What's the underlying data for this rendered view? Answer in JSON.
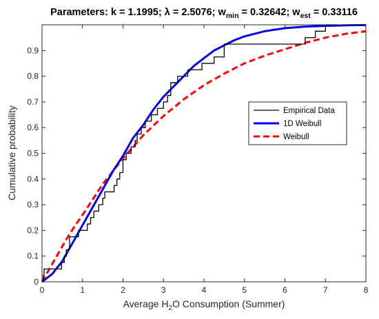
{
  "chart_data": {
    "type": "line",
    "title": {
      "prefix": "Parameters: k = 1.1995; ",
      "lambda_symbol": "λ",
      "lambda_value": " = 2.5076; w",
      "wmin_sub": "min",
      "wmin_value": " = 0.32642; w",
      "west_sub": "est",
      "west_value": " = 0.33116"
    },
    "xlabel": {
      "pre": "Average H",
      "sub": "2",
      "post": "O Consumption (Summer)"
    },
    "ylabel": "Cumulative probability",
    "xlim": [
      0,
      8
    ],
    "ylim": [
      0,
      1
    ],
    "x_ticks": [
      0,
      1,
      2,
      3,
      4,
      5,
      6,
      7,
      8
    ],
    "x_tick_labels": [
      "0",
      "1",
      "2",
      "3",
      "4",
      "5",
      "6",
      "7",
      "8"
    ],
    "y_ticks": [
      0,
      0.1,
      0.2,
      0.3,
      0.4,
      0.5,
      0.6,
      0.7,
      0.8,
      0.9
    ],
    "y_tick_labels": [
      "0",
      "0.1",
      "0.2",
      "0.3",
      "0.4",
      "0.5",
      "0.6",
      "0.7",
      "0.8",
      "0.9"
    ],
    "grid": false,
    "legend_position": "right",
    "series": [
      {
        "name": "Empirical Data",
        "kind": "step",
        "color": "#000000",
        "x": [
          0,
          0.03,
          0.05,
          0.1,
          0.48,
          0.55,
          0.6,
          0.68,
          0.9,
          1.12,
          1.2,
          1.28,
          1.4,
          1.5,
          1.55,
          1.78,
          1.85,
          1.92,
          2.0,
          2.08,
          2.2,
          2.3,
          2.35,
          2.45,
          2.55,
          2.7,
          2.85,
          3.0,
          3.1,
          3.18,
          3.35,
          3.6,
          3.8,
          3.95,
          4.1,
          4.25,
          4.5,
          6.5,
          6.65,
          6.75,
          6.85,
          7.0,
          7.3
        ],
        "y": [
          0.0,
          0.025,
          0.05,
          0.05,
          0.075,
          0.1,
          0.125,
          0.175,
          0.2,
          0.225,
          0.25,
          0.275,
          0.3,
          0.325,
          0.35,
          0.375,
          0.4,
          0.425,
          0.475,
          0.5,
          0.525,
          0.55,
          0.575,
          0.6,
          0.625,
          0.65,
          0.675,
          0.7,
          0.725,
          0.775,
          0.8,
          0.825,
          0.825,
          0.85,
          0.85,
          0.875,
          0.925,
          0.95,
          0.95,
          0.975,
          0.975,
          1.0,
          1.0
        ]
      },
      {
        "name": "1D Weibull",
        "kind": "solid",
        "color": "#0000ee",
        "x": [
          0,
          0.25,
          0.5,
          0.75,
          1.0,
          1.25,
          1.5,
          1.75,
          2.0,
          2.25,
          2.5,
          2.75,
          3.0,
          3.25,
          3.5,
          3.75,
          4.0,
          4.25,
          4.5,
          4.75,
          5.0,
          5.5,
          6.0,
          6.5,
          7.0,
          7.5,
          8.0
        ],
        "y": [
          0.0,
          0.03,
          0.08,
          0.15,
          0.22,
          0.29,
          0.36,
          0.43,
          0.49,
          0.56,
          0.61,
          0.67,
          0.72,
          0.76,
          0.8,
          0.84,
          0.87,
          0.9,
          0.92,
          0.94,
          0.955,
          0.975,
          0.987,
          0.993,
          0.996,
          0.998,
          0.999
        ]
      },
      {
        "name": "Weibull",
        "kind": "dashed",
        "color": "#ff0000",
        "x": [
          0,
          0.2,
          0.4,
          0.6,
          0.8,
          1.0,
          1.25,
          1.5,
          1.75,
          2.0,
          2.5,
          3.0,
          3.5,
          4.0,
          4.5,
          5.0,
          5.5,
          6.0,
          6.5,
          7.0,
          7.5,
          8.0
        ],
        "y": [
          0.0,
          0.055,
          0.11,
          0.165,
          0.215,
          0.26,
          0.32,
          0.38,
          0.43,
          0.48,
          0.57,
          0.645,
          0.71,
          0.765,
          0.81,
          0.85,
          0.88,
          0.905,
          0.93,
          0.95,
          0.965,
          0.975
        ]
      }
    ]
  }
}
